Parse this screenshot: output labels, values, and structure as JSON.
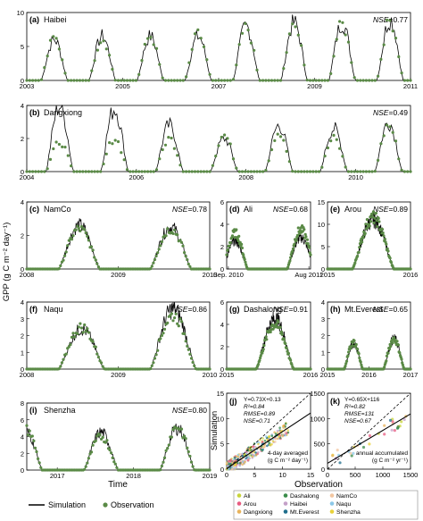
{
  "figure": {
    "ylabel": "GPP (g C m⁻² day⁻¹)",
    "xlabel_time": "Time",
    "xlabel_obs": "Observation",
    "ylabel_sim": "Simulation",
    "legend": {
      "simulation": "Simulation",
      "observation": "Observation"
    },
    "colors": {
      "simulation": "#000000",
      "observation": "#5a8a46"
    }
  },
  "chart_data": [
    {
      "type": "line",
      "panel": "(a)",
      "site": "Haibei",
      "nse": "=0.77",
      "xrange": [
        2003,
        2011
      ],
      "ylim": [
        0,
        10
      ],
      "yticks": [
        0,
        5,
        10
      ],
      "xticks": [
        {
          "v": 2003,
          "l": "2003"
        },
        {
          "v": 2005,
          "l": "2005"
        },
        {
          "v": 2007,
          "l": "2007"
        },
        {
          "v": 2009,
          "l": "2009"
        },
        {
          "v": 2011,
          "l": "2011"
        }
      ],
      "seasons": [
        [
          2003.3,
          2003.85,
          6.0,
          6.2
        ],
        [
          2004.3,
          2004.85,
          6.5,
          6.2
        ],
        [
          2005.3,
          2005.85,
          6.5,
          6.5
        ],
        [
          2006.3,
          2006.85,
          6.5,
          6.8
        ],
        [
          2007.3,
          2007.85,
          8.0,
          7.8
        ],
        [
          2008.3,
          2008.85,
          8.5,
          8.0
        ],
        [
          2009.3,
          2009.85,
          8.5,
          8.2
        ],
        [
          2010.3,
          2010.85,
          9.0,
          8.8
        ]
      ]
    },
    {
      "type": "line",
      "panel": "(b)",
      "site": "Dangxiong",
      "nse": "=0.49",
      "xrange": [
        2004,
        2011
      ],
      "ylim": [
        0,
        4
      ],
      "yticks": [
        0,
        2,
        4
      ],
      "xticks": [
        {
          "v": 2004,
          "l": "2004"
        },
        {
          "v": 2006,
          "l": "2006"
        },
        {
          "v": 2008,
          "l": "2008"
        },
        {
          "v": 2010,
          "l": "2010"
        }
      ],
      "seasons": [
        [
          2004.35,
          2004.85,
          4.0,
          1.8
        ],
        [
          2005.35,
          2005.85,
          3.8,
          2.0
        ],
        [
          2006.35,
          2006.85,
          2.8,
          2.0
        ],
        [
          2007.35,
          2007.85,
          2.0,
          2.2
        ],
        [
          2008.35,
          2008.85,
          2.8,
          2.4
        ],
        [
          2009.35,
          2009.85,
          2.6,
          2.0
        ],
        [
          2010.35,
          2010.85,
          3.0,
          2.8
        ]
      ]
    },
    {
      "type": "line",
      "panel": "(c)",
      "site": "NamCo",
      "nse": "=0.78",
      "xrange": [
        2008,
        2010
      ],
      "ylim": [
        0,
        4
      ],
      "yticks": [
        0,
        2,
        4
      ],
      "xticks": [
        {
          "v": 2008,
          "l": "2008"
        },
        {
          "v": 2009,
          "l": "2009"
        },
        {
          "v": 2010,
          "l": "2010"
        }
      ],
      "seasons": [
        [
          2008.35,
          2008.8,
          2.6,
          2.4
        ],
        [
          2009.35,
          2009.8,
          2.5,
          2.4
        ]
      ]
    },
    {
      "type": "line",
      "panel": "(d)",
      "site": "Ali",
      "nse": "=0.68",
      "xrange": [
        0,
        1
      ],
      "ylim": [
        0,
        6
      ],
      "yticks": [
        0,
        2,
        4,
        6
      ],
      "xticks": [
        {
          "v": 0.02,
          "l": "Sep. 2010"
        },
        {
          "v": 0.98,
          "l": "Aug 2011"
        }
      ],
      "seasons": [
        [
          -0.05,
          0.25,
          2.5,
          3.2
        ],
        [
          0.72,
          1.05,
          2.8,
          3.5
        ]
      ]
    },
    {
      "type": "line",
      "panel": "(e)",
      "site": "Arou",
      "nse": "=0.89",
      "xrange": [
        2015,
        2016
      ],
      "ylim": [
        0,
        15
      ],
      "yticks": [
        0,
        5,
        10,
        15
      ],
      "xticks": [
        {
          "v": 2015,
          "l": "2015"
        },
        {
          "v": 2016,
          "l": "2016"
        }
      ],
      "seasons": [
        [
          2015.3,
          2015.8,
          11.0,
          11.5
        ]
      ]
    },
    {
      "type": "line",
      "panel": "(f)",
      "site": "Naqu",
      "nse": "=0.86",
      "xrange": [
        2008,
        2010
      ],
      "ylim": [
        0,
        4
      ],
      "yticks": [
        0,
        1,
        2,
        3,
        4
      ],
      "xticks": [
        {
          "v": 2008,
          "l": "2008"
        },
        {
          "v": 2009,
          "l": "2009"
        },
        {
          "v": 2010,
          "l": "2010"
        }
      ],
      "seasons": [
        [
          2008.35,
          2008.85,
          2.4,
          2.5
        ],
        [
          2009.35,
          2009.85,
          3.6,
          3.2
        ]
      ]
    },
    {
      "type": "line",
      "panel": "(g)",
      "site": "Dashalong",
      "nse": "=0.91",
      "xrange": [
        2015,
        2016
      ],
      "ylim": [
        0,
        6
      ],
      "yticks": [
        0,
        2,
        4,
        6
      ],
      "xticks": [
        {
          "v": 2015,
          "l": "2015"
        },
        {
          "v": 2016,
          "l": "2016"
        }
      ],
      "seasons": [
        [
          2015.35,
          2015.8,
          4.5,
          4.0
        ]
      ]
    },
    {
      "type": "line",
      "panel": "(h)",
      "site": "Mt.Everest",
      "nse": "=0.65",
      "xrange": [
        2015,
        2017
      ],
      "ylim": [
        0,
        4
      ],
      "yticks": [
        0,
        1,
        2,
        3,
        4
      ],
      "xticks": [
        {
          "v": 2015,
          "l": "2015"
        },
        {
          "v": 2016,
          "l": "2016"
        },
        {
          "v": 2017,
          "l": "2017"
        }
      ],
      "seasons": [
        [
          2015.4,
          2015.85,
          1.5,
          1.6
        ],
        [
          2016.35,
          2016.85,
          1.8,
          1.8
        ]
      ]
    },
    {
      "type": "line",
      "panel": "(i)",
      "site": "Shenzha",
      "nse": "=0.80",
      "xrange": [
        2016.6,
        2019
      ],
      "ylim": [
        0,
        8
      ],
      "yticks": [
        0,
        2,
        4,
        6,
        8
      ],
      "xticks": [
        {
          "v": 2017,
          "l": "2017"
        },
        {
          "v": 2018,
          "l": "2018"
        },
        {
          "v": 2019,
          "l": "2019"
        }
      ],
      "seasons": [
        [
          2016.4,
          2016.8,
          4.5,
          4.8
        ],
        [
          2017.35,
          2017.8,
          4.5,
          4.0
        ],
        [
          2018.35,
          2018.8,
          5.0,
          5.2
        ]
      ]
    },
    {
      "type": "scatter",
      "panel": "(j)",
      "xlim": [
        0,
        15
      ],
      "ylim": [
        0,
        15
      ],
      "xticks": [
        0,
        5,
        10,
        15
      ],
      "yticks": [
        0,
        5,
        10,
        15
      ],
      "fit": [
        0.73,
        0.13
      ],
      "stats": [
        "Y=0.73X+0.13",
        "R²=0.84",
        "RMSE=0.89",
        "NSE=0.71"
      ],
      "note": [
        "4-day averaged",
        "(g C m⁻² day⁻¹)"
      ]
    },
    {
      "type": "scatter",
      "panel": "(k)",
      "xlim": [
        0,
        1500
      ],
      "ylim": [
        0,
        1500
      ],
      "xticks": [
        0,
        500,
        1000,
        1500
      ],
      "yticks": [
        0,
        500,
        1000,
        1500
      ],
      "fit": [
        0.65,
        116
      ],
      "stats": [
        "Y=0.65X+116",
        "R²=0.82",
        "RMSE=131",
        "NSE=0.67"
      ],
      "note": [
        "annual accumulated",
        "(g C m⁻² yr⁻¹)"
      ]
    }
  ],
  "sites": [
    {
      "name": "Ali",
      "color": "#c8d43a"
    },
    {
      "name": "Arou",
      "color": "#e85b80"
    },
    {
      "name": "Dangxiong",
      "color": "#e8b35b"
    },
    {
      "name": "Dashalong",
      "color": "#3a8c4a"
    },
    {
      "name": "Haibei",
      "color": "#c4a0c8"
    },
    {
      "name": "Mt.Everest",
      "color": "#1f6e8c"
    },
    {
      "name": "NamCo",
      "color": "#f2c6a0"
    },
    {
      "name": "Naqu",
      "color": "#8cc8e8"
    },
    {
      "name": "Shenzha",
      "color": "#e8d23a"
    }
  ]
}
